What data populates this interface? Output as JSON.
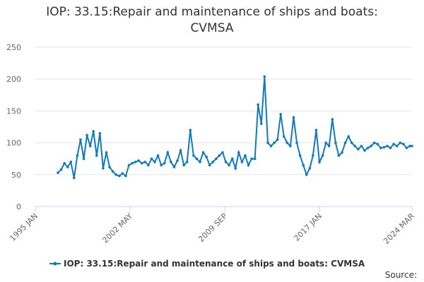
{
  "chart_data": {
    "type": "line",
    "title": "IOP: 33.15:Repair and maintenance of ships and boats: CVMSA",
    "source": "Source:",
    "xlim": [
      "1995-01",
      "2024-03"
    ],
    "xticks": [
      {
        "value": "1995-01",
        "label": "1995 JAN"
      },
      {
        "value": "2002-05",
        "label": "2002 MAY"
      },
      {
        "value": "2009-09",
        "label": "2009 SEP"
      },
      {
        "value": "2017-01",
        "label": "2017 JAN"
      },
      {
        "value": "2024-03",
        "label": "2024 MAR"
      }
    ],
    "ylim": [
      0,
      250
    ],
    "yticks": [
      0,
      50,
      100,
      150,
      200,
      250
    ],
    "grid": true,
    "x": [
      "1996-10",
      "1997-01",
      "1997-04",
      "1997-07",
      "1997-10",
      "1998-01",
      "1998-04",
      "1998-07",
      "1998-10",
      "1999-01",
      "1999-04",
      "1999-07",
      "1999-10",
      "2000-01",
      "2000-04",
      "2000-07",
      "2000-10",
      "2001-01",
      "2001-04",
      "2001-07",
      "2001-10",
      "2002-01",
      "2002-04",
      "2002-07",
      "2002-10",
      "2003-01",
      "2003-04",
      "2003-07",
      "2003-10",
      "2004-01",
      "2004-04",
      "2004-07",
      "2004-10",
      "2005-01",
      "2005-04",
      "2005-07",
      "2005-10",
      "2006-01",
      "2006-04",
      "2006-07",
      "2006-10",
      "2007-01",
      "2007-04",
      "2007-07",
      "2007-10",
      "2008-01",
      "2008-04",
      "2008-07",
      "2008-10",
      "2009-01",
      "2009-04",
      "2009-07",
      "2009-10",
      "2010-01",
      "2010-04",
      "2010-07",
      "2010-10",
      "2011-01",
      "2011-04",
      "2011-07",
      "2011-10",
      "2012-01",
      "2012-04",
      "2012-07",
      "2012-10",
      "2013-01",
      "2013-04",
      "2013-07",
      "2013-10",
      "2014-01",
      "2014-04",
      "2014-07",
      "2014-10",
      "2015-01",
      "2015-04",
      "2015-07",
      "2015-10",
      "2016-01",
      "2016-04",
      "2016-07",
      "2016-10",
      "2017-01",
      "2017-04",
      "2017-07",
      "2017-10",
      "2018-01",
      "2018-04",
      "2018-07",
      "2018-10",
      "2019-01",
      "2019-04",
      "2019-07",
      "2019-10",
      "2020-01",
      "2020-04",
      "2020-07",
      "2020-10",
      "2021-01",
      "2021-04",
      "2021-07",
      "2021-10",
      "2022-01",
      "2022-04",
      "2022-07",
      "2022-10",
      "2023-01",
      "2023-04",
      "2023-07",
      "2023-10",
      "2024-01",
      "2024-03"
    ],
    "series": [
      {
        "name": "IOP: 33.15:Repair and maintenance of ships and boats: CVMSA",
        "color": "#0f7bbd",
        "values": [
          53,
          58,
          68,
          62,
          70,
          45,
          80,
          105,
          75,
          112,
          95,
          118,
          80,
          115,
          60,
          85,
          62,
          55,
          50,
          48,
          52,
          48,
          65,
          68,
          70,
          72,
          68,
          70,
          65,
          75,
          70,
          80,
          65,
          68,
          85,
          70,
          62,
          72,
          88,
          65,
          70,
          120,
          80,
          75,
          70,
          85,
          78,
          65,
          70,
          75,
          80,
          85,
          70,
          65,
          75,
          60,
          85,
          70,
          80,
          65,
          75,
          75,
          160,
          130,
          204,
          100,
          95,
          100,
          105,
          145,
          110,
          100,
          95,
          140,
          100,
          80,
          65,
          50,
          60,
          80,
          120,
          70,
          80,
          100,
          95,
          137,
          100,
          80,
          85,
          100,
          110,
          100,
          95,
          90,
          95,
          88,
          92,
          95,
          100,
          98,
          92,
          93,
          95,
          92,
          98,
          95,
          100,
          98,
          92,
          95,
          95
        ]
      }
    ]
  }
}
